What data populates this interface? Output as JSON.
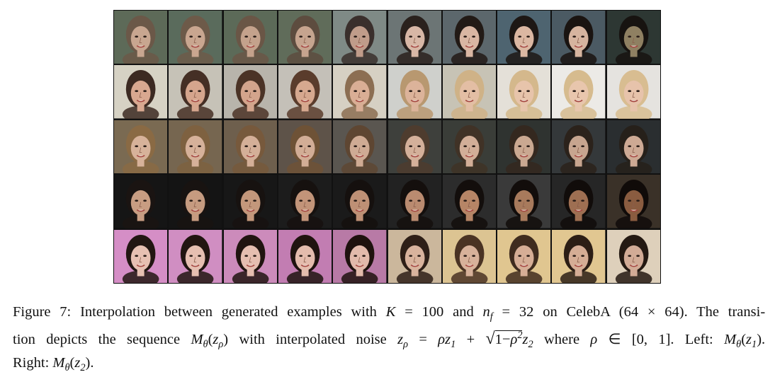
{
  "figure": {
    "grid": {
      "rows": 5,
      "cols": 10,
      "rows_data": [
        {
          "bg": [
            "#5d6a58",
            "#5a6b5c",
            "#5c6a58",
            "#606c5a",
            "#7f8a86",
            "#6c7575",
            "#5c676c",
            "#4e6470",
            "#4b5a63",
            "#2d3733"
          ],
          "skin": [
            "#c8a690",
            "#c9a690",
            "#c4a28c",
            "#c6a48f",
            "#c09c8a",
            "#d8b7a6",
            "#d9b6a3",
            "#dbb7a2",
            "#d6b49f",
            "#8f8062"
          ],
          "hair": [
            "#6b5848",
            "#6d5a49",
            "#6a5646",
            "#5d4c3f",
            "#3a2f2c",
            "#2a211d",
            "#221a16",
            "#1d1714",
            "#1a1411",
            "#171310"
          ]
        },
        {
          "bg": [
            "#d6d2c4",
            "#c6c2b7",
            "#b8b4ab",
            "#c4c0b8",
            "#d6d0c3",
            "#cfd0cc",
            "#c7c3b5",
            "#e4e0d8",
            "#eceae6",
            "#e5e3df"
          ],
          "skin": [
            "#d8a890",
            "#d5a58d",
            "#d3a48c",
            "#d6a88f",
            "#d9ae95",
            "#dcb39a",
            "#e3bea4",
            "#e7c4ab",
            "#e8c6ad",
            "#e7c3ab"
          ],
          "hair": [
            "#3c2a22",
            "#452f25",
            "#4b3326",
            "#5a3c2c",
            "#8c6e52",
            "#b89870",
            "#cfb287",
            "#d4b88c",
            "#d6bb8e",
            "#d8bd91"
          ]
        },
        {
          "bg": [
            "#7a6a52",
            "#766650",
            "#6e5f4d",
            "#5e5349",
            "#5a5650",
            "#3e403c",
            "#3a3d38",
            "#2f3330",
            "#34383a",
            "#2a2e30"
          ],
          "skin": [
            "#d7b29a",
            "#d6b19a",
            "#d4af98",
            "#d2ad96",
            "#cfab94",
            "#d4b09a",
            "#d2ae98",
            "#caa891",
            "#c7a58f",
            "#cda994"
          ],
          "hair": [
            "#8a6a44",
            "#7e6140",
            "#77593c",
            "#6e5236",
            "#5e4632",
            "#4e3c2e",
            "#403226",
            "#34281f",
            "#2b221b",
            "#26201a"
          ]
        },
        {
          "bg": [
            "#151515",
            "#141414",
            "#171717",
            "#1c1c1c",
            "#1a1a1a",
            "#222222",
            "#2c2c2c",
            "#3a3a3a",
            "#262626",
            "#3a3128"
          ],
          "skin": [
            "#c89d82",
            "#c69b80",
            "#c3977b",
            "#c29479",
            "#be9075",
            "#ba8b70",
            "#b68566",
            "#a87a5c",
            "#9e6f52",
            "#8a5c40"
          ],
          "hair": [
            "#1a1412",
            "#181311",
            "#171210",
            "#16110f",
            "#15100e",
            "#140f0d",
            "#130e0c",
            "#120d0b",
            "#110c0a",
            "#100b09"
          ]
        },
        {
          "bg": [
            "#d58ec6",
            "#d08ec2",
            "#cc8bbb",
            "#c27db2",
            "#b87aa6",
            "#cbb79c",
            "#dcc492",
            "#e0c690",
            "#e1c791",
            "#ded0bb"
          ],
          "skin": [
            "#e7c0b2",
            "#e6bfb1",
            "#e5beb0",
            "#e4bcad",
            "#e2baab",
            "#d9b39d",
            "#d7b19a",
            "#d6ae96",
            "#d5ad95",
            "#d2ab96"
          ],
          "hair": [
            "#221612",
            "#211511",
            "#201410",
            "#1f130f",
            "#1e120e",
            "#2e1f17",
            "#4a3323",
            "#3f2c1f",
            "#2c1e15",
            "#241912"
          ]
        }
      ]
    }
  },
  "caption": {
    "label": "Figure 7:",
    "line1_a": "Interpolation between generated examples with",
    "K_sym": "K",
    "eq": "=",
    "K_val": "100",
    "and": "and",
    "n_sym": "n",
    "n_sub": "f",
    "n_val": "32",
    "on": "on CelebA (64",
    "times": "×",
    "dim_end": "64). The transi-",
    "line2_a": "tion depicts the sequence",
    "M": "M",
    "theta": "θ",
    "z": "z",
    "rho": "ρ",
    "line2_b": "with interpolated noise",
    "plus": "+",
    "one_minus": "1",
    "minus": "−",
    "sq": "2",
    "where": "where",
    "in": "∈",
    "interval": "[0, 1]. Left:",
    "sub1": "1",
    "sub2": "2",
    "right": "Right:",
    "period": "."
  }
}
